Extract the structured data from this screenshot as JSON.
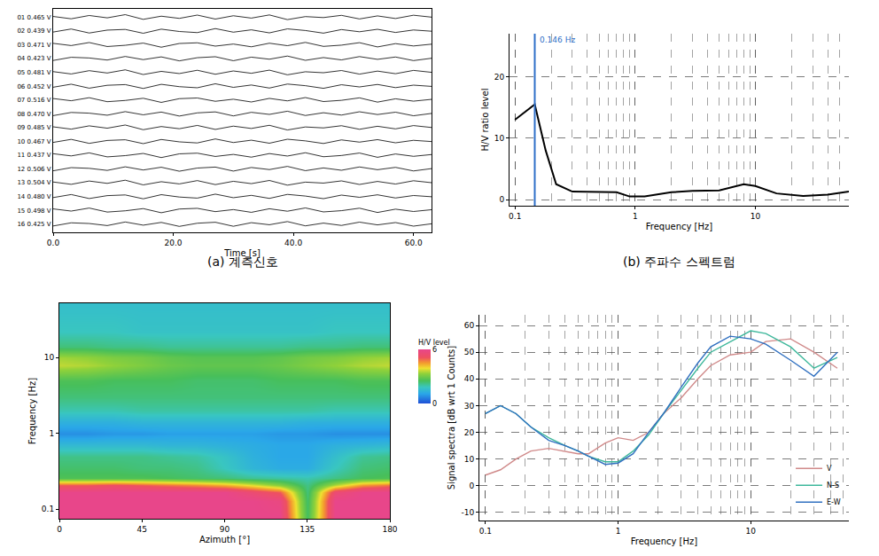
{
  "chart_data": [
    {
      "type": "line",
      "title": "(a) 계측신호",
      "x_label": "Time [s]",
      "color": "#000000",
      "grid": false,
      "x": [
        0,
        3,
        6,
        9,
        12,
        15,
        18,
        21,
        24,
        27,
        30,
        33,
        36,
        39,
        42,
        45,
        48,
        51,
        54,
        57,
        60,
        63
      ],
      "xlim": [
        0,
        63
      ],
      "xticks": [
        {
          "value": 0,
          "label": "0.0"
        },
        {
          "value": 20,
          "label": "20.0"
        },
        {
          "value": 40,
          "label": "40.0"
        },
        {
          "value": 60,
          "label": "60.0"
        }
      ],
      "ylim": [
        0.4,
        16.6
      ],
      "yticks": [
        {
          "value": 16,
          "label": "01 0.465 V"
        },
        {
          "value": 15,
          "label": "02 0.439 V"
        },
        {
          "value": 14,
          "label": "03 0.471 V"
        },
        {
          "value": 13,
          "label": "04 0.423 V"
        },
        {
          "value": 12,
          "label": "05 0.481 V"
        },
        {
          "value": 11,
          "label": "06 0.452 V"
        },
        {
          "value": 10,
          "label": "07 0.516 V"
        },
        {
          "value": 9,
          "label": "08 0.470 V"
        },
        {
          "value": 8,
          "label": "09 0.485 V"
        },
        {
          "value": 7,
          "label": "10 0.467 V"
        },
        {
          "value": 6,
          "label": "11 0.437 V"
        },
        {
          "value": 5,
          "label": "12 0.506 V"
        },
        {
          "value": 4,
          "label": "13 0.504 V"
        },
        {
          "value": 3,
          "label": "14 0.480 V"
        },
        {
          "value": 2,
          "label": "15 0.498 V"
        },
        {
          "value": 1,
          "label": "16 0.425 V"
        }
      ],
      "series": [
        {
          "values": [
            16.05,
            15.88,
            16.12,
            15.95,
            16.18,
            15.84,
            16.07,
            15.91,
            16.15,
            15.86,
            16.1,
            15.93,
            16.16,
            15.82,
            16.04,
            15.97,
            16.13,
            15.87,
            16.09,
            15.9,
            16.14,
            16
          ]
        },
        {
          "values": [
            14.92,
            15.14,
            14.85,
            15.06,
            15.11,
            14.83,
            15.13,
            14.96,
            14.88,
            15.17,
            14.91,
            15.08,
            14.86,
            15.15,
            15.03,
            14.84,
            15.1,
            14.94,
            15.12,
            14.89,
            15.07,
            14.98
          ]
        },
        {
          "values": [
            14.1,
            13.94,
            14.16,
            13.87,
            13.96,
            14.12,
            13.82,
            14.09,
            14.14,
            13.9,
            14.05,
            13.85,
            14.11,
            13.93,
            14.17,
            13.88,
            13.97,
            14.15,
            13.84,
            14.08,
            13.91,
            14.04
          ]
        },
        {
          "values": [
            12.86,
            13.09,
            13.04,
            12.89,
            13.15,
            12.92,
            13.12,
            12.83,
            13.06,
            13.13,
            12.84,
            13.1,
            12.95,
            13.18,
            12.87,
            13.07,
            12.9,
            13.14,
            12.94,
            13.11,
            12.85,
            13.02
          ]
        },
        {
          "values": [
            12.05,
            11.88,
            12.12,
            11.95,
            12.18,
            11.84,
            12.07,
            11.91,
            12.15,
            11.86,
            12.1,
            11.93,
            12.16,
            11.82,
            12.04,
            11.97,
            12.13,
            11.87,
            12.09,
            11.9,
            12.14,
            12
          ]
        },
        {
          "values": [
            10.92,
            11.14,
            10.85,
            11.06,
            11.11,
            10.83,
            11.13,
            10.96,
            10.88,
            11.17,
            10.91,
            11.08,
            10.86,
            11.15,
            11.03,
            10.84,
            11.1,
            10.94,
            11.12,
            10.89,
            11.07,
            10.98
          ]
        },
        {
          "values": [
            10.1,
            9.94,
            10.16,
            9.87,
            9.96,
            10.12,
            9.82,
            10.09,
            10.14,
            9.9,
            10.05,
            9.85,
            10.11,
            9.93,
            10.17,
            9.88,
            9.97,
            10.15,
            9.84,
            10.08,
            9.91,
            10.04
          ]
        },
        {
          "values": [
            8.86,
            9.09,
            9.04,
            8.89,
            9.15,
            8.92,
            9.12,
            8.83,
            9.06,
            9.13,
            8.84,
            9.1,
            8.95,
            9.18,
            8.87,
            9.07,
            8.9,
            9.14,
            8.94,
            9.11,
            8.85,
            9.02
          ]
        },
        {
          "values": [
            8.05,
            7.88,
            8.12,
            7.95,
            8.18,
            7.84,
            8.07,
            7.91,
            8.15,
            7.86,
            8.1,
            7.93,
            8.16,
            7.82,
            8.04,
            7.97,
            8.13,
            7.87,
            8.09,
            7.9,
            8.14,
            8
          ]
        },
        {
          "values": [
            6.92,
            7.14,
            6.85,
            7.06,
            7.11,
            6.83,
            7.13,
            6.96,
            6.88,
            7.17,
            6.91,
            7.08,
            6.86,
            7.15,
            7.03,
            6.84,
            7.1,
            6.94,
            7.12,
            6.89,
            7.07,
            6.98
          ]
        },
        {
          "values": [
            6.1,
            5.94,
            6.16,
            5.87,
            5.96,
            6.12,
            5.82,
            6.09,
            6.14,
            5.9,
            6.05,
            5.85,
            6.11,
            5.93,
            6.17,
            5.88,
            5.97,
            6.15,
            5.84,
            6.08,
            5.91,
            6.04
          ]
        },
        {
          "values": [
            4.86,
            5.09,
            5.04,
            4.89,
            5.15,
            4.92,
            5.12,
            4.83,
            5.06,
            5.13,
            4.84,
            5.1,
            4.95,
            5.18,
            4.87,
            5.07,
            4.9,
            5.14,
            4.94,
            5.11,
            4.85,
            5.02
          ]
        },
        {
          "values": [
            4.05,
            3.88,
            4.12,
            3.95,
            4.18,
            3.84,
            4.07,
            3.91,
            4.15,
            3.86,
            4.1,
            3.93,
            4.16,
            3.82,
            4.04,
            3.97,
            4.13,
            3.87,
            4.09,
            3.9,
            4.14,
            4
          ]
        },
        {
          "values": [
            2.92,
            3.14,
            2.85,
            3.06,
            3.11,
            2.83,
            3.13,
            2.96,
            2.88,
            3.17,
            2.91,
            3.08,
            2.86,
            3.15,
            3.03,
            2.84,
            3.1,
            2.94,
            3.12,
            2.89,
            3.07,
            2.98
          ]
        },
        {
          "values": [
            2.1,
            1.94,
            2.16,
            1.87,
            1.96,
            2.12,
            1.82,
            2.09,
            2.14,
            1.9,
            2.05,
            1.85,
            2.11,
            1.93,
            2.17,
            1.88,
            1.97,
            2.15,
            1.84,
            2.08,
            1.91,
            2.04
          ]
        },
        {
          "values": [
            0.86,
            1.09,
            1.04,
            0.89,
            1.15,
            0.92,
            1.12,
            0.83,
            1.06,
            1.13,
            0.84,
            1.1,
            0.95,
            1.18,
            0.87,
            1.07,
            0.9,
            1.14,
            0.94,
            1.11,
            0.85,
            1.02
          ]
        }
      ]
    },
    {
      "type": "line",
      "title": "(b) 주파수 스펙트럼",
      "x_label": "Frequency [Hz]",
      "y_label": "H/V ratio level",
      "log": "x",
      "grid": true,
      "color": "#000000",
      "x": [
        0.1,
        0.146,
        0.18,
        0.22,
        0.3,
        0.5,
        0.7,
        0.9,
        1.2,
        2,
        3,
        5,
        8,
        10,
        15,
        25,
        40,
        60
      ],
      "series": [
        {
          "values": [
            13,
            15.5,
            8,
            2.5,
            1.3,
            1.3,
            1.2,
            0.5,
            0.5,
            1.2,
            1.4,
            1.5,
            2.5,
            2.2,
            1,
            0.6,
            0.8,
            1.3
          ]
        }
      ],
      "xlim": [
        0.09,
        60
      ],
      "xticks": [
        0.1,
        1,
        10
      ],
      "ylim": [
        -1,
        27
      ],
      "yticks": [
        0,
        10,
        20
      ],
      "peak": {
        "x": 0.146,
        "label": "0.146 Hz",
        "color": "#2f6fc8"
      }
    },
    {
      "type": "heatmap",
      "x_label": "Azimuth [°]",
      "y_label": "Frequency [Hz]",
      "log": "y",
      "grid": true,
      "colorbar_title": "H/V level",
      "x": [
        0,
        15,
        30,
        45,
        60,
        75,
        90,
        105,
        120,
        135,
        150,
        165,
        180
      ],
      "y": [
        0.075,
        0.13,
        0.17,
        0.21,
        0.26,
        0.35,
        0.5,
        0.7,
        1,
        1.4,
        2,
        3,
        5,
        8,
        10,
        14,
        22,
        52
      ],
      "z": [
        [
          6,
          6,
          6,
          6,
          6,
          6,
          6,
          6,
          6,
          2.5,
          6,
          6,
          6
        ],
        [
          6,
          6,
          6,
          6,
          6,
          6,
          6,
          6,
          5.8,
          2.4,
          6,
          6,
          6
        ],
        [
          6,
          6,
          6,
          6,
          6,
          6,
          6,
          5.5,
          5,
          2.3,
          5.5,
          6,
          6
        ],
        [
          5,
          5,
          5.2,
          5,
          4.8,
          4.6,
          4.3,
          3.8,
          3.2,
          2.2,
          3.5,
          4.5,
          4.8
        ],
        [
          2.6,
          2.6,
          2.6,
          2.6,
          2.5,
          2.4,
          2.3,
          2.1,
          2,
          1.9,
          2.2,
          2.5,
          2.6
        ],
        [
          2.4,
          2.4,
          2.4,
          2.3,
          2.3,
          2.2,
          1.8,
          1.4,
          1.2,
          1.2,
          1.8,
          2.3,
          2.4
        ],
        [
          2.2,
          2.2,
          2.2,
          2.2,
          2.1,
          2,
          1.7,
          1.3,
          1.1,
          1.1,
          1.6,
          2.1,
          2.2
        ],
        [
          1.5,
          1.5,
          1.5,
          1.5,
          1.4,
          1.4,
          1.3,
          1.2,
          1.1,
          1.1,
          1.3,
          1.4,
          1.5
        ],
        [
          0.8,
          0.8,
          0.9,
          0.9,
          1,
          1,
          1,
          1,
          0.9,
          0.9,
          0.8,
          0.8,
          0.8
        ],
        [
          1.3,
          1.3,
          1.3,
          1.4,
          1.4,
          1.4,
          1.4,
          1.4,
          1.4,
          1.3,
          1.3,
          1.3,
          1.3
        ],
        [
          1.9,
          1.9,
          1.9,
          2,
          2,
          2,
          2,
          2,
          2,
          2,
          1.9,
          1.9,
          1.9
        ],
        [
          2.3,
          2.3,
          2.3,
          2.3,
          2.3,
          2.3,
          2.3,
          2.3,
          2.3,
          2.3,
          2.3,
          2.3,
          2.3
        ],
        [
          2.6,
          2.6,
          2.5,
          2.5,
          2.5,
          2.4,
          2.4,
          2.4,
          2.5,
          2.5,
          2.5,
          2.6,
          2.6
        ],
        [
          3.6,
          3.5,
          3.3,
          3.1,
          2.9,
          2.8,
          2.8,
          2.8,
          2.9,
          3.1,
          3.3,
          3.5,
          3.6
        ],
        [
          3.4,
          3.3,
          3.1,
          3,
          2.8,
          2.7,
          2.7,
          2.7,
          2.8,
          3,
          3.1,
          3.3,
          3.4
        ],
        [
          2.3,
          2.3,
          2.2,
          2.2,
          2.1,
          2.1,
          2.1,
          2.1,
          2.1,
          2.2,
          2.2,
          2.3,
          2.3
        ],
        [
          1.8,
          1.8,
          1.8,
          1.7,
          1.7,
          1.7,
          1.7,
          1.7,
          1.7,
          1.7,
          1.8,
          1.8,
          1.8
        ],
        [
          1.6,
          1.6,
          1.6,
          1.6,
          1.6,
          1.6,
          1.6,
          1.6,
          1.6,
          1.6,
          1.6,
          1.6,
          1.6
        ]
      ],
      "zlim": [
        0,
        6
      ],
      "zticks": [
        0,
        6
      ],
      "xlim": [
        0,
        180
      ],
      "xticks": [
        0,
        45,
        90,
        135,
        180
      ],
      "ylim": [
        0.075,
        52
      ],
      "yticks": [
        0.1,
        1,
        10
      ]
    },
    {
      "type": "line",
      "x_label": "Frequency [Hz]",
      "y_label": "Signal spectra [dB wrt 1 Counts]",
      "log": "x",
      "grid": true,
      "legend": "lower right",
      "x": [
        0.1,
        0.13,
        0.17,
        0.22,
        0.3,
        0.4,
        0.5,
        0.6,
        0.8,
        1,
        1.3,
        1.7,
        2.2,
        3,
        4,
        5,
        7,
        10,
        13,
        20,
        30,
        45
      ],
      "series": [
        {
          "name": "V",
          "color": "#d08a8a",
          "values": [
            4,
            6,
            10,
            13,
            14,
            13,
            12,
            12,
            16,
            18,
            17,
            20,
            27,
            33,
            40,
            45,
            49,
            50,
            54,
            55,
            50,
            44
          ]
        },
        {
          "name": "N-S",
          "color": "#3fb89c",
          "values": [
            27,
            30,
            27,
            22,
            18,
            15,
            13,
            11,
            9,
            9,
            13,
            19,
            27,
            36,
            44,
            50,
            54,
            58,
            57,
            52,
            44,
            48
          ]
        },
        {
          "name": "E-W",
          "color": "#3070c0",
          "values": [
            27,
            30,
            27,
            22,
            17,
            15,
            13,
            11,
            8,
            8.5,
            12,
            20,
            27,
            37,
            46,
            52,
            56,
            55,
            53,
            47,
            41,
            50
          ]
        }
      ],
      "xlim": [
        0.09,
        55
      ],
      "xticks": [
        0.1,
        1,
        10
      ],
      "ylim": [
        -13,
        64
      ],
      "yticks": [
        -10,
        0,
        10,
        20,
        30,
        40,
        50,
        60
      ]
    }
  ]
}
